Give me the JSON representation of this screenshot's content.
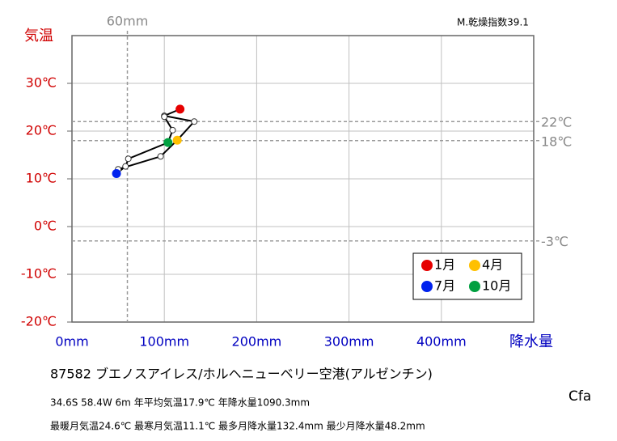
{
  "chart_data": {
    "type": "climograph",
    "index_label": "M.乾燥指数39.1",
    "y_label": "気温",
    "x_label": "降水量",
    "x": [
      117,
      100,
      132.4,
      114,
      96,
      50,
      48.2,
      58,
      61,
      104,
      109,
      100
    ],
    "values": [
      24.6,
      23.2,
      22.0,
      18.1,
      14.7,
      12.0,
      11.1,
      12.6,
      14.2,
      17.6,
      20.2,
      23.0
    ],
    "point_colors": [
      "#e60000",
      "#ffffff",
      "#ffffff",
      "#ffc000",
      "#ffffff",
      "#ffffff",
      "#0022ee",
      "#ffffff",
      "#ffffff",
      "#00a040",
      "#ffffff",
      "#ffffff"
    ],
    "line_color": "#000000",
    "xlim": [
      0,
      500
    ],
    "ylim": [
      -20,
      40
    ],
    "xticks": [
      {
        "value": 0,
        "label": "0mm"
      },
      {
        "value": 100,
        "label": "100mm"
      },
      {
        "value": 200,
        "label": "200mm"
      },
      {
        "value": 300,
        "label": "300mm"
      },
      {
        "value": 400,
        "label": "400mm"
      }
    ],
    "yticks": [
      {
        "value": -20,
        "label": "-20℃"
      },
      {
        "value": -10,
        "label": "-10℃"
      },
      {
        "value": 0,
        "label": "0℃"
      },
      {
        "value": 10,
        "label": "10℃"
      },
      {
        "value": 20,
        "label": "20℃"
      },
      {
        "value": 30,
        "label": "30℃"
      }
    ],
    "grid": true,
    "ref_x": [
      {
        "value": 60,
        "label": "60mm"
      }
    ],
    "ref_y": [
      {
        "value": 22,
        "label": "22℃"
      },
      {
        "value": 18,
        "label": "18℃"
      },
      {
        "value": -3,
        "label": "-3℃"
      }
    ],
    "legend": [
      {
        "label": "1月",
        "color": "#e60000"
      },
      {
        "label": "4月",
        "color": "#ffc000"
      },
      {
        "label": "7月",
        "color": "#0022ee"
      },
      {
        "label": "10月",
        "color": "#00a040"
      }
    ],
    "station": "87582  ブエノスアイレス/ホルヘニューベリー空港(アルゼンチン)",
    "info1": "34.6S  58.4W 6m  年平均気温17.9℃ 年降水量1090.3mm",
    "info2": "最暖月気温24.6℃ 最寒月気温11.1℃ 最多月降水量132.4mm 最少月降水量48.2mm",
    "climate": "Cfa"
  }
}
